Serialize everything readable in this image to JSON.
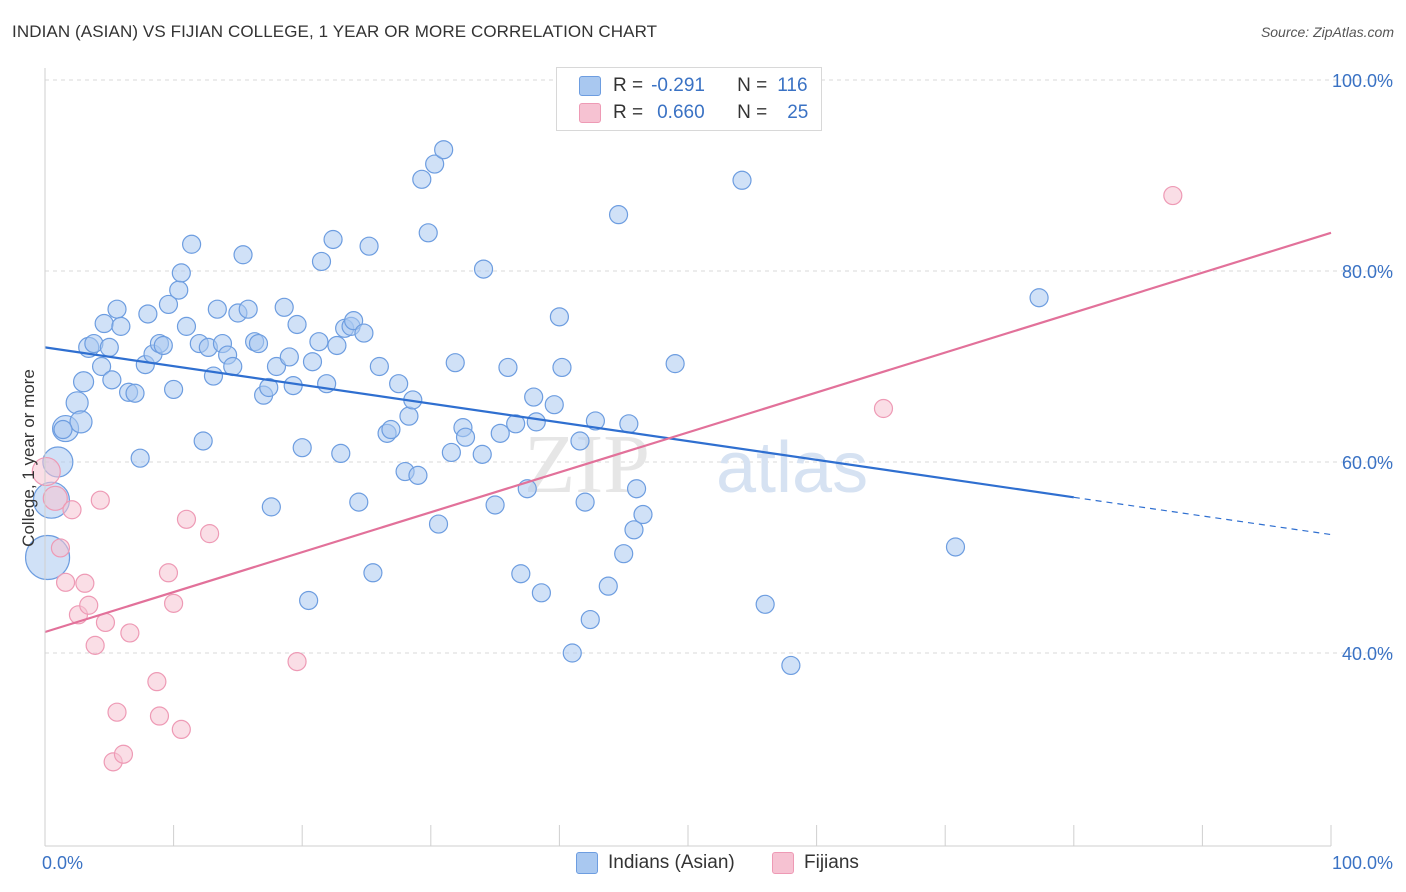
{
  "title": "INDIAN (ASIAN) VS FIJIAN COLLEGE, 1 YEAR OR MORE CORRELATION CHART",
  "source": "Source: ZipAtlas.com",
  "colors": {
    "blue_fill": "#a9c8f0",
    "blue_stroke": "#6d9de0",
    "blue_line": "#2f6fd0",
    "pink_fill": "#f6c2d2",
    "pink_stroke": "#ee9ab5",
    "pink_line": "#e2719a",
    "axis_label": "#3a72c4",
    "grid": "#d9d9d9"
  },
  "legend_top": {
    "rows": [
      {
        "r_label": "R =",
        "r_value": "-0.291",
        "n_label": "N =",
        "n_value": "116",
        "color": "#a9c8f0"
      },
      {
        "r_label": "R =",
        "r_value": "0.660",
        "n_label": "N =",
        "n_value": "25",
        "color": "#f6c2d2"
      }
    ]
  },
  "legend_bottom": [
    {
      "label": "Indians (Asian)",
      "color": "#a9c8f0"
    },
    {
      "label": "Fijians",
      "color": "#f6c2d2"
    }
  ],
  "watermark": {
    "part1": "ZIP",
    "part2": "atlas"
  },
  "chart_data": {
    "type": "scatter",
    "title": "INDIAN (ASIAN) VS FIJIAN COLLEGE, 1 YEAR OR MORE CORRELATION CHART",
    "xlabel": "",
    "ylabel": "College, 1 year or more",
    "xlim": [
      0,
      100
    ],
    "ylim": [
      20,
      102
    ],
    "x_tick_labels": [
      "0.0%",
      "100.0%"
    ],
    "y_ticks": [
      40,
      60,
      80,
      100
    ],
    "y_tick_labels": [
      "40.0%",
      "60.0%",
      "80.0%",
      "100.0%"
    ],
    "grid": true,
    "legend_placement": "top-center",
    "series": [
      {
        "name": "Indians (Asian)",
        "r": -0.291,
        "n": 116,
        "trend": {
          "x0": 0,
          "y0": 72.0,
          "x1": 80,
          "y1": 56.3,
          "dash_to_x": 100,
          "dash_to_y": 52.4
        },
        "points": [
          [
            0.2,
            50.0,
            22
          ],
          [
            0.5,
            56.0,
            18
          ],
          [
            1.0,
            60.0,
            15
          ],
          [
            1.6,
            63.5,
            13
          ],
          [
            2.5,
            66.2,
            11
          ],
          [
            2.8,
            64.2,
            11
          ],
          [
            3.0,
            68.4,
            10
          ],
          [
            3.4,
            72.0,
            10
          ],
          [
            3.8,
            72.4,
            9
          ],
          [
            4.4,
            70.0,
            9
          ],
          [
            4.6,
            74.5,
            9
          ],
          [
            5.0,
            72.0,
            9
          ],
          [
            5.2,
            68.6,
            9
          ],
          [
            5.6,
            76.0,
            9
          ],
          [
            5.9,
            74.2,
            9
          ],
          [
            6.5,
            67.3,
            9
          ],
          [
            7.0,
            67.2,
            9
          ],
          [
            7.4,
            60.4,
            9
          ],
          [
            7.8,
            70.2,
            9
          ],
          [
            8.0,
            75.5,
            9
          ],
          [
            8.4,
            71.3,
            9
          ],
          [
            8.9,
            72.4,
            9
          ],
          [
            9.2,
            72.2,
            9
          ],
          [
            9.6,
            76.5,
            9
          ],
          [
            10.0,
            67.6,
            9
          ],
          [
            10.4,
            78.0,
            9
          ],
          [
            10.6,
            79.8,
            9
          ],
          [
            11.0,
            74.2,
            9
          ],
          [
            11.4,
            82.8,
            9
          ],
          [
            12.0,
            72.4,
            9
          ],
          [
            12.3,
            62.2,
            9
          ],
          [
            12.7,
            72.0,
            9
          ],
          [
            13.1,
            69.0,
            9
          ],
          [
            13.4,
            76.0,
            9
          ],
          [
            13.8,
            72.4,
            9
          ],
          [
            14.2,
            71.2,
            9
          ],
          [
            14.6,
            70.0,
            9
          ],
          [
            15.0,
            75.6,
            9
          ],
          [
            15.4,
            81.7,
            9
          ],
          [
            15.8,
            76.0,
            9
          ],
          [
            16.3,
            72.6,
            9
          ],
          [
            16.6,
            72.4,
            9
          ],
          [
            17.0,
            67.0,
            9
          ],
          [
            17.4,
            67.8,
            9
          ],
          [
            17.6,
            55.3,
            9
          ],
          [
            18.0,
            70.0,
            9
          ],
          [
            18.6,
            76.2,
            9
          ],
          [
            19.0,
            71.0,
            9
          ],
          [
            19.3,
            68.0,
            9
          ],
          [
            19.6,
            74.4,
            9
          ],
          [
            20.0,
            61.5,
            9
          ],
          [
            20.5,
            45.5,
            9
          ],
          [
            20.8,
            70.5,
            9
          ],
          [
            21.3,
            72.6,
            9
          ],
          [
            21.5,
            81.0,
            9
          ],
          [
            21.9,
            68.2,
            9
          ],
          [
            22.4,
            83.3,
            9
          ],
          [
            22.7,
            72.2,
            9
          ],
          [
            23.0,
            60.9,
            9
          ],
          [
            23.3,
            74.0,
            9
          ],
          [
            23.8,
            74.2,
            9
          ],
          [
            24.0,
            74.8,
            9
          ],
          [
            24.4,
            55.8,
            9
          ],
          [
            24.8,
            73.5,
            9
          ],
          [
            25.2,
            82.6,
            9
          ],
          [
            25.5,
            48.4,
            9
          ],
          [
            26.0,
            70.0,
            9
          ],
          [
            26.6,
            63.0,
            9
          ],
          [
            26.9,
            63.4,
            9
          ],
          [
            27.5,
            68.2,
            9
          ],
          [
            28.0,
            59.0,
            9
          ],
          [
            28.3,
            64.8,
            9
          ],
          [
            28.6,
            66.5,
            9
          ],
          [
            29.0,
            58.6,
            9
          ],
          [
            29.3,
            89.6,
            9
          ],
          [
            29.8,
            84.0,
            9
          ],
          [
            30.3,
            91.2,
            9
          ],
          [
            30.6,
            53.5,
            9
          ],
          [
            31.0,
            92.7,
            9
          ],
          [
            31.6,
            61.0,
            9
          ],
          [
            31.9,
            70.4,
            9
          ],
          [
            32.5,
            63.6,
            9
          ],
          [
            32.7,
            62.6,
            9
          ],
          [
            34.0,
            60.8,
            9
          ],
          [
            34.1,
            80.2,
            9
          ],
          [
            35.0,
            55.5,
            9
          ],
          [
            35.4,
            63.0,
            9
          ],
          [
            36.0,
            69.9,
            9
          ],
          [
            36.6,
            64.0,
            9
          ],
          [
            37.0,
            48.3,
            9
          ],
          [
            37.5,
            57.2,
            9
          ],
          [
            38.0,
            66.8,
            9
          ],
          [
            38.2,
            64.2,
            9
          ],
          [
            38.6,
            46.3,
            9
          ],
          [
            39.6,
            66.0,
            9
          ],
          [
            40.0,
            75.2,
            9
          ],
          [
            40.2,
            69.9,
            9
          ],
          [
            41.0,
            40.0,
            9
          ],
          [
            41.6,
            62.2,
            9
          ],
          [
            42.0,
            55.8,
            9
          ],
          [
            42.4,
            43.5,
            9
          ],
          [
            42.8,
            64.3,
            9
          ],
          [
            43.8,
            47.0,
            9
          ],
          [
            44.6,
            85.9,
            9
          ],
          [
            45.0,
            50.4,
            9
          ],
          [
            45.4,
            64.0,
            9
          ],
          [
            45.8,
            52.9,
            9
          ],
          [
            46.0,
            57.2,
            9
          ],
          [
            46.5,
            54.5,
            9
          ],
          [
            49.0,
            70.3,
            9
          ],
          [
            54.2,
            89.5,
            9
          ],
          [
            56.0,
            45.1,
            9
          ],
          [
            58.0,
            38.7,
            9
          ],
          [
            70.8,
            51.1,
            9
          ],
          [
            77.3,
            77.2,
            9
          ],
          [
            1.4,
            63.4,
            9
          ]
        ]
      },
      {
        "name": "Fijians",
        "r": 0.66,
        "n": 25,
        "trend": {
          "x0": 0,
          "y0": 42.2,
          "x1": 100,
          "y1": 84.0
        },
        "points": [
          [
            0.1,
            59.0,
            14
          ],
          [
            0.8,
            56.2,
            12
          ],
          [
            1.2,
            51.0,
            9
          ],
          [
            1.6,
            47.4,
            9
          ],
          [
            2.1,
            55.0,
            9
          ],
          [
            2.6,
            44.0,
            9
          ],
          [
            3.1,
            47.3,
            9
          ],
          [
            3.4,
            45.0,
            9
          ],
          [
            3.9,
            40.8,
            9
          ],
          [
            4.3,
            56.0,
            9
          ],
          [
            4.7,
            43.2,
            9
          ],
          [
            5.3,
            28.6,
            9
          ],
          [
            5.6,
            33.8,
            9
          ],
          [
            6.1,
            29.4,
            9
          ],
          [
            6.6,
            42.1,
            9
          ],
          [
            8.7,
            37.0,
            9
          ],
          [
            8.9,
            33.4,
            9
          ],
          [
            9.6,
            48.4,
            9
          ],
          [
            10.0,
            45.2,
            9
          ],
          [
            10.6,
            32.0,
            9
          ],
          [
            11.0,
            54.0,
            9
          ],
          [
            12.8,
            52.5,
            9
          ],
          [
            19.6,
            39.1,
            9
          ],
          [
            65.2,
            65.6,
            9
          ],
          [
            87.7,
            87.9,
            9
          ]
        ]
      }
    ]
  }
}
